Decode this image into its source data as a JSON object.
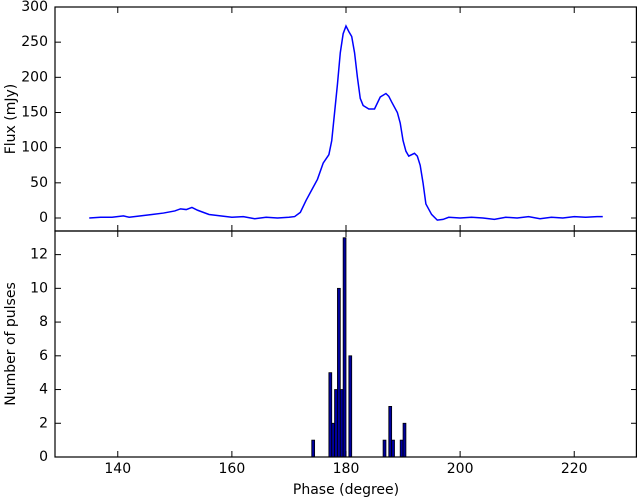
{
  "chart_data": [
    {
      "type": "line",
      "ylabel": "Flux (mJy)",
      "xlim": [
        129,
        231
      ],
      "ylim": [
        -18.5,
        300
      ],
      "yticks": [
        0,
        50,
        100,
        150,
        200,
        250,
        300
      ],
      "series": [
        {
          "color": "#0000ff",
          "x": [
            135,
            137,
            139,
            141,
            142,
            144,
            146,
            148,
            150,
            151,
            152,
            153,
            154,
            155,
            156,
            158,
            160,
            162,
            164,
            166,
            168,
            170,
            171,
            172,
            173,
            174,
            175,
            176,
            177,
            177.5,
            178,
            178.5,
            179,
            179.5,
            180,
            180.5,
            181,
            181.5,
            182,
            182.5,
            183,
            184,
            185,
            186,
            187,
            187.5,
            188,
            189,
            189.5,
            190,
            190.5,
            191,
            192,
            192.5,
            193,
            193.5,
            194,
            195,
            196,
            197,
            198,
            200,
            202,
            204,
            206,
            208,
            210,
            212,
            214,
            216,
            218,
            220,
            222,
            224,
            225
          ],
          "values": [
            0,
            1,
            1,
            3,
            1,
            3,
            5,
            7,
            10,
            13,
            12,
            15,
            11,
            8,
            5,
            3,
            1,
            2,
            -1,
            1,
            0,
            1,
            2,
            8,
            25,
            40,
            55,
            78,
            90,
            110,
            150,
            190,
            235,
            262,
            273,
            265,
            258,
            235,
            200,
            170,
            160,
            155,
            155,
            172,
            177,
            173,
            165,
            150,
            135,
            110,
            95,
            88,
            92,
            88,
            75,
            50,
            20,
            5,
            -3,
            -2,
            1,
            0,
            1,
            0,
            -2,
            1,
            0,
            2,
            -1,
            1,
            0,
            2,
            1,
            2,
            2
          ]
        }
      ]
    },
    {
      "type": "histogram",
      "xlabel": "Phase (degree)",
      "ylabel": "Number of pulses",
      "xlim": [
        129,
        231
      ],
      "ylim": [
        0,
        13.4
      ],
      "xticks": [
        140,
        160,
        180,
        200,
        220
      ],
      "yticks": [
        0,
        2,
        4,
        6,
        8,
        10,
        12
      ],
      "color": "#0000a0",
      "bins": [
        173.5,
        174,
        174.5,
        175,
        175.5,
        176,
        176.5,
        177,
        177.5,
        178,
        178.5,
        179,
        179.5,
        180,
        180.5,
        181,
        181.5,
        182,
        182.5,
        183,
        183.5,
        184,
        184.5,
        185,
        185.5,
        186,
        186.5,
        187,
        187.5,
        188,
        188.5,
        189,
        189.5,
        190,
        190.5
      ],
      "values": [
        0,
        1,
        0,
        0,
        0,
        0,
        0,
        5,
        2,
        4,
        10,
        4,
        13,
        0,
        6,
        0,
        0,
        0,
        0,
        0,
        0,
        0,
        0,
        0,
        0,
        0,
        1,
        0,
        3,
        1,
        0,
        0,
        1,
        2
      ]
    }
  ]
}
